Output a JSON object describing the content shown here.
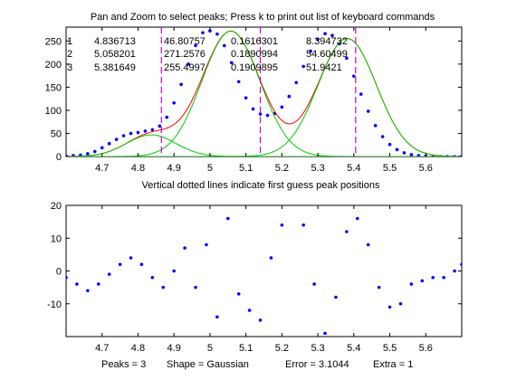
{
  "window": {
    "title": "Pan and Zoom to select peaks; Press k to print out list of keyboard commands",
    "top_caption": "Vertical dotted lines indicate first guess peak positions",
    "status": {
      "peaks": "Peaks = 3",
      "shape": "Shape = Gaussian",
      "error": "Error = 3.1044",
      "extra": "Extra = 1"
    }
  },
  "fit_table": [
    [
      "1",
      "4.836713",
      "46.80757",
      "0.1616301",
      "8.394732"
    ],
    [
      "2",
      "5.058201",
      "271.2576",
      "0.1890994",
      "54.60499"
    ],
    [
      "3",
      "5.381649",
      "255.4997",
      "0.1909895",
      "51.9421"
    ]
  ],
  "colors": {
    "data": "#0000ff",
    "fit": "#ff0000",
    "components": "#00cc00",
    "guess_lines": "#cc00cc",
    "axes": "#000000"
  },
  "chart_data": [
    {
      "type": "scatter",
      "title": "Pan and Zoom to select peaks; Press k to print out list of keyboard commands",
      "xlabel": "Vertical dotted lines indicate first guess peak positions",
      "ylabel": "",
      "xlim": [
        4.6,
        5.7
      ],
      "ylim": [
        0,
        280
      ],
      "xticks": [
        "4.7",
        "4.8",
        "4.9",
        "5",
        "5.1",
        "5.2",
        "5.3",
        "5.4",
        "5.5",
        "5.6"
      ],
      "yticks": [
        "0",
        "50",
        "100",
        "150",
        "200",
        "250"
      ],
      "grid": false,
      "series": [
        {
          "kind": "data_points",
          "color": "#0000ff",
          "x": [
            4.6,
            4.62,
            4.64,
            4.66,
            4.68,
            4.7,
            4.72,
            4.74,
            4.76,
            4.78,
            4.8,
            4.82,
            4.84,
            4.86,
            4.88,
            4.9,
            4.92,
            4.94,
            4.96,
            4.98,
            5.0,
            5.02,
            5.04,
            5.06,
            5.08,
            5.1,
            5.12,
            5.14,
            5.16,
            5.18,
            5.2,
            5.22,
            5.24,
            5.26,
            5.28,
            5.3,
            5.32,
            5.34,
            5.36,
            5.38,
            5.4,
            5.42,
            5.44,
            5.46,
            5.48,
            5.5,
            5.52,
            5.54,
            5.56,
            5.58,
            5.6,
            5.62,
            5.64,
            5.66,
            5.68,
            5.7
          ],
          "y": [
            1,
            2,
            3,
            6,
            11,
            19,
            28,
            37,
            45,
            50,
            52,
            55,
            58,
            66,
            85,
            116,
            156,
            200,
            240,
            268,
            272,
            265,
            240,
            203,
            162,
            127,
            103,
            92,
            89,
            93,
            107,
            130,
            160,
            195,
            228,
            254,
            266,
            262,
            244,
            213,
            174,
            135,
            98,
            67,
            43,
            26,
            15,
            8,
            4,
            2,
            1,
            0,
            0,
            0,
            0,
            0
          ]
        },
        {
          "kind": "fit",
          "color": "#ff0000",
          "peaks": [
            [
              4.836713,
              46.80757,
              0.1616301
            ],
            [
              5.058201,
              271.2576,
              0.1890994
            ],
            [
              5.381649,
              255.4997,
              0.1909895
            ]
          ]
        },
        {
          "kind": "components",
          "color": "#00cc00",
          "peaks": [
            [
              4.836713,
              46.80757,
              0.1616301
            ],
            [
              5.058201,
              271.2576,
              0.1890994
            ],
            [
              5.381649,
              255.4997,
              0.1909895
            ]
          ]
        },
        {
          "kind": "first_guess_lines",
          "color": "#cc00cc",
          "x": [
            4.865,
            5.14,
            5.405
          ]
        }
      ]
    },
    {
      "type": "scatter",
      "title": "",
      "xlabel": "",
      "ylabel": "",
      "xlim": [
        4.6,
        5.7
      ],
      "ylim": [
        -20,
        20
      ],
      "xticks": [
        "4.7",
        "4.8",
        "4.9",
        "5",
        "5.1",
        "5.2",
        "5.3",
        "5.4",
        "5.5",
        "5.6"
      ],
      "yticks": [
        "-10",
        "0",
        "10",
        "20"
      ],
      "grid": false,
      "series": [
        {
          "kind": "residuals",
          "color": "#0000ff",
          "x": [
            4.6,
            4.63,
            4.66,
            4.69,
            4.72,
            4.75,
            4.78,
            4.81,
            4.84,
            4.87,
            4.9,
            4.93,
            4.96,
            4.99,
            5.02,
            5.05,
            5.08,
            5.11,
            5.14,
            5.17,
            5.2,
            5.23,
            5.26,
            5.29,
            5.32,
            5.35,
            5.38,
            5.41,
            5.44,
            5.47,
            5.5,
            5.53,
            5.56,
            5.59,
            5.62,
            5.65,
            5.68,
            5.7
          ],
          "y": [
            -2,
            -4,
            -6,
            -4,
            -1,
            2,
            4,
            2,
            -2,
            -5,
            0,
            7,
            -5,
            8,
            -14,
            16,
            -7,
            -12,
            -15,
            4,
            14,
            21,
            14,
            -4,
            -19,
            -8,
            12,
            16,
            8,
            -5,
            -11,
            -10,
            -4,
            -3,
            -2,
            -2,
            0,
            2
          ]
        }
      ]
    }
  ]
}
